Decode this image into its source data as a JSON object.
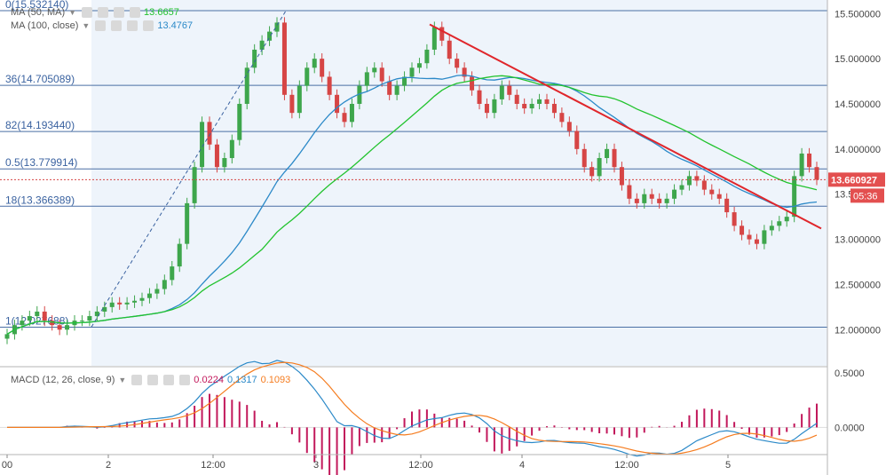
{
  "indicators": {
    "ma50": {
      "label": "MA (50, MA)",
      "value": "13.6657",
      "color": "#22c32e"
    },
    "ma100": {
      "label": "MA (100, close)",
      "value": "13.4767",
      "color": "#2b89c8"
    },
    "macd": {
      "label": "MACD (12, 26, close, 9)",
      "hist": "0.0224",
      "macd": "0.1317",
      "signal": "0.1093",
      "hist_color": "#c2185b",
      "macd_color": "#2b89c8",
      "signal_color": "#f57c1f"
    }
  },
  "price_axis": {
    "ticks": [
      "15.500000",
      "15.000000",
      "14.500000",
      "14.000000",
      "13.000000",
      "12.500000",
      "12.000000"
    ],
    "tick_values": [
      15.5,
      15.0,
      14.5,
      14.0,
      13.0,
      12.5,
      12.0
    ],
    "partial_tick": "13.5",
    "current_price": "13.660927",
    "countdown": "05:36"
  },
  "macd_axis": {
    "ticks": [
      "0.5000",
      "0.0000"
    ],
    "tick_values": [
      0.5,
      0.0
    ]
  },
  "time_axis": {
    "labels": [
      "00",
      "2",
      "12:00",
      "3",
      "12:00",
      "4",
      "12:00",
      "5"
    ]
  },
  "fib_levels": [
    {
      "label": "0(15.532140)",
      "value": 15.53214
    },
    {
      "label": "36(14.705089)",
      "value": 14.705089
    },
    {
      "label": "82(14.193440)",
      "value": 14.19344
    },
    {
      "label": "0.5(13.779914)",
      "value": 13.779914
    },
    {
      "label": "18(13.366389)",
      "value": 13.366389
    },
    {
      "label": "1(12.027688)",
      "value": 12.027688
    }
  ],
  "chart_data": {
    "type": "candlestick",
    "symbol_pane": {
      "ylim": [
        11.6,
        15.65
      ],
      "candles_close": [
        11.95,
        12.05,
        12.1,
        12.15,
        12.2,
        12.1,
        12.05,
        12.0,
        12.05,
        12.1,
        12.1,
        12.15,
        12.2,
        12.25,
        12.3,
        12.28,
        12.3,
        12.32,
        12.35,
        12.4,
        12.45,
        12.55,
        12.7,
        12.95,
        13.4,
        13.8,
        14.3,
        14.05,
        13.8,
        13.9,
        14.1,
        14.5,
        14.9,
        15.1,
        15.2,
        15.3,
        15.4,
        14.6,
        14.4,
        14.7,
        14.9,
        15.0,
        14.8,
        14.6,
        14.4,
        14.3,
        14.5,
        14.7,
        14.85,
        14.9,
        14.75,
        14.6,
        14.7,
        14.8,
        14.9,
        14.95,
        15.1,
        15.35,
        15.2,
        15.0,
        14.9,
        14.8,
        14.65,
        14.5,
        14.4,
        14.55,
        14.7,
        14.6,
        14.5,
        14.45,
        14.5,
        14.55,
        14.5,
        14.4,
        14.3,
        14.2,
        14.0,
        13.8,
        13.7,
        13.9,
        14.0,
        13.8,
        13.6,
        13.45,
        13.4,
        13.5,
        13.45,
        13.4,
        13.45,
        13.55,
        13.6,
        13.7,
        13.65,
        13.55,
        13.5,
        13.45,
        13.3,
        13.15,
        13.05,
        13.0,
        12.95,
        13.1,
        13.15,
        13.2,
        13.25,
        13.7,
        13.95,
        13.8,
        13.66
      ],
      "ma50_color": "#22c32e",
      "ma100_color": "#2b89c8",
      "trendline_color": "#e0262b"
    },
    "macd_pane": {
      "ylim": [
        -0.25,
        0.55
      ]
    }
  }
}
